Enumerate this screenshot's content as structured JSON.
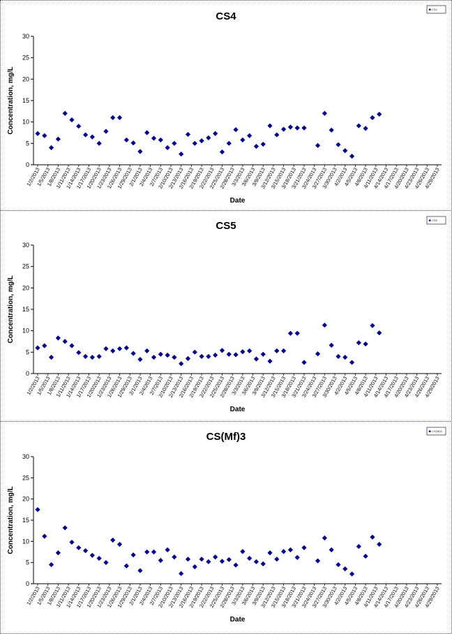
{
  "chart_data": [
    {
      "type": "scatter",
      "title": "CS4",
      "xlabel": "Date",
      "ylabel": "Concentration, mg/L",
      "ylim": [
        0,
        30
      ],
      "yticks": [
        "0",
        "5",
        "10",
        "15",
        "20",
        "25",
        "30"
      ],
      "legend": {
        "placement": "top-right",
        "label": "CS4"
      },
      "marker_color": "#00008B",
      "x_ticks": [
        "1/2/2013",
        "1/5/2013",
        "1/8/2013",
        "1/11/2013",
        "1/14/2013",
        "1/17/2013",
        "1/20/2013",
        "1/23/2013",
        "1/26/2013",
        "1/29/2013",
        "2/1/2013",
        "2/4/2013",
        "2/7/2013",
        "2/10/2013",
        "2/13/2013",
        "2/16/2013",
        "2/19/2013",
        "2/22/2013",
        "2/25/2013",
        "2/28/2013",
        "3/3/2013",
        "3/6/2013",
        "3/9/2013",
        "3/12/2013",
        "3/15/2013",
        "3/18/2013",
        "3/21/2013",
        "3/24/2013",
        "3/27/2013",
        "3/30/2013",
        "4/2/2013",
        "4/5/2013",
        "4/8/2013",
        "4/11/2013",
        "4/14/2013",
        "4/17/2013",
        "4/20/2013",
        "4/23/2013",
        "4/26/2013",
        "4/29/2013"
      ],
      "points": [
        [
          "1/2/2013",
          7.3
        ],
        [
          "1/4/2013",
          6.8
        ],
        [
          "1/6/2013",
          4.0
        ],
        [
          "1/8/2013",
          6.0
        ],
        [
          "1/10/2013",
          12.0
        ],
        [
          "1/12/2013",
          10.5
        ],
        [
          "1/14/2013",
          9.0
        ],
        [
          "1/16/2013",
          7.0
        ],
        [
          "1/18/2013",
          6.5
        ],
        [
          "1/20/2013",
          5.0
        ],
        [
          "1/22/2013",
          7.8
        ],
        [
          "1/24/2013",
          11.0
        ],
        [
          "1/26/2013",
          11.0
        ],
        [
          "1/28/2013",
          5.8
        ],
        [
          "1/30/2013",
          5.1
        ],
        [
          "2/1/2013",
          3.1
        ],
        [
          "2/3/2013",
          7.5
        ],
        [
          "2/5/2013",
          6.2
        ],
        [
          "2/7/2013",
          5.8
        ],
        [
          "2/9/2013",
          4.0
        ],
        [
          "2/11/2013",
          5.0
        ],
        [
          "2/13/2013",
          2.5
        ],
        [
          "2/15/2013",
          7.1
        ],
        [
          "2/17/2013",
          5.0
        ],
        [
          "2/19/2013",
          5.6
        ],
        [
          "2/21/2013",
          6.3
        ],
        [
          "2/23/2013",
          7.3
        ],
        [
          "2/25/2013",
          3.0
        ],
        [
          "2/27/2013",
          5.0
        ],
        [
          "3/1/2013",
          8.2
        ],
        [
          "3/3/2013",
          5.8
        ],
        [
          "3/5/2013",
          6.8
        ],
        [
          "3/7/2013",
          4.3
        ],
        [
          "3/9/2013",
          4.8
        ],
        [
          "3/11/2013",
          9.1
        ],
        [
          "3/13/2013",
          7.0
        ],
        [
          "3/15/2013",
          8.3
        ],
        [
          "3/17/2013",
          8.8
        ],
        [
          "3/19/2013",
          8.6
        ],
        [
          "3/21/2013",
          8.6
        ],
        [
          "3/25/2013",
          4.5
        ],
        [
          "3/27/2013",
          12.0
        ],
        [
          "3/29/2013",
          8.1
        ],
        [
          "3/31/2013",
          4.7
        ],
        [
          "4/2/2013",
          3.3
        ],
        [
          "4/4/2013",
          2.0
        ],
        [
          "4/6/2013",
          9.1
        ],
        [
          "4/8/2013",
          8.5
        ],
        [
          "4/10/2013",
          11.0
        ],
        [
          "4/12/2013",
          11.8
        ]
      ]
    },
    {
      "type": "scatter",
      "title": "CS5",
      "xlabel": "Date",
      "ylabel": "Concentration, mg/L",
      "ylim": [
        0,
        30
      ],
      "yticks": [
        "0",
        "5",
        "10",
        "15",
        "20",
        "25",
        "30"
      ],
      "legend": {
        "placement": "top-right",
        "label": "CS5"
      },
      "marker_color": "#00008B",
      "x_ticks": [
        "1/2/2013",
        "1/5/2013",
        "1/8/2013",
        "1/11/2013",
        "1/14/2013",
        "1/17/2013",
        "1/20/2013",
        "1/23/2013",
        "1/26/2013",
        "1/29/2013",
        "2/1/2013",
        "2/4/2013",
        "2/7/2013",
        "2/10/2013",
        "2/13/2013",
        "2/16/2013",
        "2/19/2013",
        "2/22/2013",
        "2/25/2013",
        "2/28/2013",
        "3/3/2013",
        "3/6/2013",
        "3/9/2013",
        "3/12/2013",
        "3/15/2013",
        "3/18/2013",
        "3/21/2013",
        "3/24/2013",
        "3/27/2013",
        "3/30/2013",
        "4/2/2013",
        "4/5/2013",
        "4/8/2013",
        "4/11/2013",
        "4/14/2013",
        "4/17/2013",
        "4/20/2013",
        "4/23/2013",
        "4/26/2013",
        "4/29/2013"
      ],
      "points": [
        [
          "1/2/2013",
          6.0
        ],
        [
          "1/4/2013",
          6.5
        ],
        [
          "1/6/2013",
          3.8
        ],
        [
          "1/8/2013",
          8.3
        ],
        [
          "1/10/2013",
          7.5
        ],
        [
          "1/12/2013",
          6.5
        ],
        [
          "1/14/2013",
          4.9
        ],
        [
          "1/16/2013",
          4.0
        ],
        [
          "1/18/2013",
          3.8
        ],
        [
          "1/20/2013",
          4.0
        ],
        [
          "1/22/2013",
          5.8
        ],
        [
          "1/24/2013",
          5.3
        ],
        [
          "1/26/2013",
          5.8
        ],
        [
          "1/28/2013",
          6.0
        ],
        [
          "1/30/2013",
          4.7
        ],
        [
          "2/1/2013",
          3.3
        ],
        [
          "2/3/2013",
          5.3
        ],
        [
          "2/5/2013",
          3.8
        ],
        [
          "2/7/2013",
          4.5
        ],
        [
          "2/9/2013",
          4.3
        ],
        [
          "2/11/2013",
          3.8
        ],
        [
          "2/13/2013",
          2.3
        ],
        [
          "2/15/2013",
          3.5
        ],
        [
          "2/17/2013",
          5.0
        ],
        [
          "2/19/2013",
          4.0
        ],
        [
          "2/21/2013",
          4.0
        ],
        [
          "2/23/2013",
          4.3
        ],
        [
          "2/25/2013",
          5.4
        ],
        [
          "2/27/2013",
          4.5
        ],
        [
          "3/1/2013",
          4.4
        ],
        [
          "3/3/2013",
          5.1
        ],
        [
          "3/5/2013",
          5.3
        ],
        [
          "3/7/2013",
          3.4
        ],
        [
          "3/9/2013",
          4.5
        ],
        [
          "3/11/2013",
          2.9
        ],
        [
          "3/13/2013",
          5.3
        ],
        [
          "3/15/2013",
          5.3
        ],
        [
          "3/17/2013",
          9.4
        ],
        [
          "3/19/2013",
          9.4
        ],
        [
          "3/21/2013",
          2.6
        ],
        [
          "3/25/2013",
          4.6
        ],
        [
          "3/27/2013",
          11.3
        ],
        [
          "3/29/2013",
          6.6
        ],
        [
          "3/31/2013",
          4.0
        ],
        [
          "4/2/2013",
          3.8
        ],
        [
          "4/4/2013",
          2.6
        ],
        [
          "4/6/2013",
          7.2
        ],
        [
          "4/8/2013",
          6.9
        ],
        [
          "4/10/2013",
          11.2
        ],
        [
          "4/12/2013",
          9.5
        ]
      ]
    },
    {
      "type": "scatter",
      "title": "CS(Mf)3",
      "xlabel": "Date",
      "ylabel": "Concentration, mg/L",
      "ylim": [
        0,
        30
      ],
      "yticks": [
        "0",
        "5",
        "10",
        "15",
        "20",
        "25",
        "30"
      ],
      "legend": {
        "placement": "top-right",
        "label": "CS(Mf)3"
      },
      "marker_color": "#00008B",
      "x_ticks": [
        "1/2/2013",
        "1/5/2013",
        "1/8/2013",
        "1/11/2013",
        "1/14/2013",
        "1/17/2013",
        "1/20/2013",
        "1/23/2013",
        "1/26/2013",
        "1/29/2013",
        "2/1/2013",
        "2/4/2013",
        "2/7/2013",
        "2/10/2013",
        "2/13/2013",
        "2/16/2013",
        "2/19/2013",
        "2/22/2013",
        "2/25/2013",
        "2/28/2013",
        "3/3/2013",
        "3/6/2013",
        "3/9/2013",
        "3/12/2013",
        "3/15/2013",
        "3/18/2013",
        "3/21/2013",
        "3/24/2013",
        "3/27/2013",
        "3/30/2013",
        "4/2/2013",
        "4/5/2013",
        "4/8/2013",
        "4/11/2013",
        "4/14/2013",
        "4/17/2013",
        "4/20/2013",
        "4/23/2013",
        "4/26/2013",
        "4/29/2013"
      ],
      "points": [
        [
          "1/2/2013",
          17.5
        ],
        [
          "1/4/2013",
          11.2
        ],
        [
          "1/6/2013",
          4.5
        ],
        [
          "1/8/2013",
          7.3
        ],
        [
          "1/10/2013",
          13.2
        ],
        [
          "1/12/2013",
          9.8
        ],
        [
          "1/14/2013",
          8.5
        ],
        [
          "1/16/2013",
          7.8
        ],
        [
          "1/18/2013",
          6.7
        ],
        [
          "1/20/2013",
          6.0
        ],
        [
          "1/22/2013",
          5.0
        ],
        [
          "1/24/2013",
          10.3
        ],
        [
          "1/26/2013",
          9.3
        ],
        [
          "1/28/2013",
          4.2
        ],
        [
          "1/30/2013",
          6.8
        ],
        [
          "2/1/2013",
          3.1
        ],
        [
          "2/3/2013",
          7.5
        ],
        [
          "2/5/2013",
          7.5
        ],
        [
          "2/7/2013",
          5.5
        ],
        [
          "2/9/2013",
          8.0
        ],
        [
          "2/11/2013",
          6.3
        ],
        [
          "2/13/2013",
          2.4
        ],
        [
          "2/15/2013",
          5.8
        ],
        [
          "2/17/2013",
          4.0
        ],
        [
          "2/19/2013",
          5.8
        ],
        [
          "2/21/2013",
          5.2
        ],
        [
          "2/23/2013",
          6.3
        ],
        [
          "2/25/2013",
          5.3
        ],
        [
          "2/27/2013",
          5.7
        ],
        [
          "3/1/2013",
          4.4
        ],
        [
          "3/3/2013",
          7.6
        ],
        [
          "3/5/2013",
          6.0
        ],
        [
          "3/7/2013",
          5.2
        ],
        [
          "3/9/2013",
          4.7
        ],
        [
          "3/11/2013",
          7.3
        ],
        [
          "3/13/2013",
          5.8
        ],
        [
          "3/15/2013",
          7.6
        ],
        [
          "3/17/2013",
          8.0
        ],
        [
          "3/19/2013",
          6.2
        ],
        [
          "3/21/2013",
          8.5
        ],
        [
          "3/25/2013",
          5.4
        ],
        [
          "3/27/2013",
          10.8
        ],
        [
          "3/29/2013",
          8.0
        ],
        [
          "3/31/2013",
          4.5
        ],
        [
          "4/2/2013",
          3.5
        ],
        [
          "4/4/2013",
          2.3
        ],
        [
          "4/6/2013",
          8.8
        ],
        [
          "4/8/2013",
          6.5
        ],
        [
          "4/10/2013",
          11.0
        ],
        [
          "4/12/2013",
          9.3
        ]
      ]
    }
  ]
}
